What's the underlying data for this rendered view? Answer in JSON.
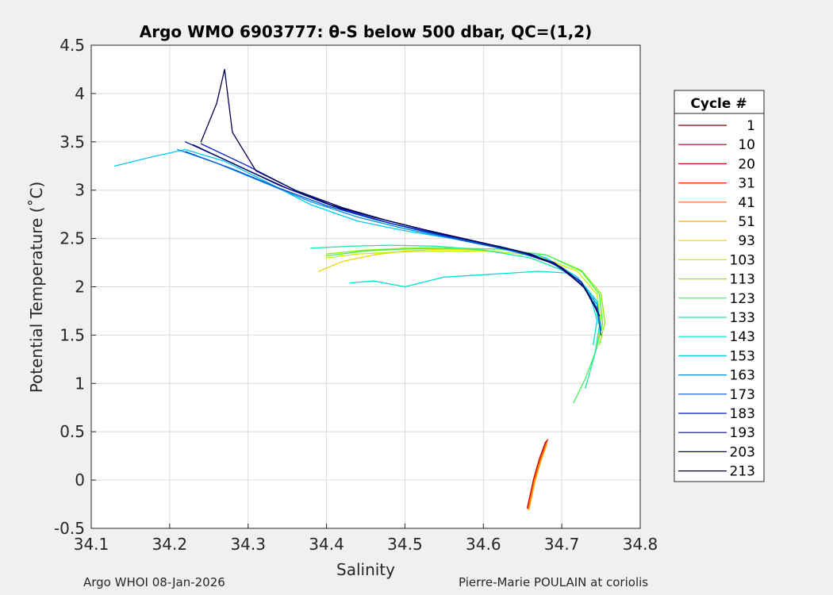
{
  "chart_data": {
    "type": "line",
    "title": "Argo WMO 6903777: θ-S below 500 dbar,  QC=(1,2)",
    "xlabel": "Salinity",
    "ylabel": "Potential Temperature (˚C)",
    "xlim": [
      34.1,
      34.8
    ],
    "ylim": [
      -0.5,
      4.5
    ],
    "xticks": [
      "34.1",
      "34.2",
      "34.3",
      "34.4",
      "34.5",
      "34.6",
      "34.7",
      "34.8"
    ],
    "yticks": [
      "-0.5",
      "0",
      "0.5",
      "1",
      "1.5",
      "2",
      "2.5",
      "3",
      "3.5",
      "4",
      "4.5"
    ],
    "grid": true,
    "legend_title": "Cycle #",
    "legend_position": "right-outside",
    "series": [
      {
        "name": "1",
        "color": "#800000",
        "x": [
          34.657,
          34.665,
          34.672,
          34.68
        ],
        "y": [
          -0.28,
          0.02,
          0.22,
          0.4
        ]
      },
      {
        "name": "10",
        "color": "#a80000",
        "x": [
          34.658,
          34.666,
          34.673,
          34.681
        ],
        "y": [
          -0.27,
          0.03,
          0.23,
          0.41
        ]
      },
      {
        "name": "20",
        "color": "#d40000",
        "x": [
          34.656,
          34.664,
          34.671,
          34.679
        ],
        "y": [
          -0.29,
          0.01,
          0.21,
          0.39
        ]
      },
      {
        "name": "31",
        "color": "#ff2000",
        "x": [
          34.659,
          34.667,
          34.674,
          34.682
        ],
        "y": [
          -0.26,
          0.04,
          0.24,
          0.42
        ]
      },
      {
        "name": "41",
        "color": "#ff6a00",
        "x": [
          34.657,
          34.665,
          34.672,
          34.68
        ],
        "y": [
          -0.3,
          0.0,
          0.2,
          0.38
        ]
      },
      {
        "name": "51",
        "color": "#ffaa00",
        "x": [
          34.658,
          34.666,
          34.673,
          34.681
        ],
        "y": [
          -0.31,
          -0.01,
          0.19,
          0.37
        ]
      },
      {
        "name": "93",
        "color": "#e8d800",
        "x": [
          34.39,
          34.42,
          34.46,
          34.5,
          34.55,
          34.6
        ],
        "y": [
          2.16,
          2.26,
          2.33,
          2.37,
          2.39,
          2.38
        ]
      },
      {
        "name": "103",
        "color": "#c8f000",
        "x": [
          34.4,
          34.44,
          34.49,
          34.55,
          34.61,
          34.67,
          34.72,
          34.745,
          34.75,
          34.745
        ],
        "y": [
          2.3,
          2.34,
          2.36,
          2.37,
          2.37,
          2.32,
          2.16,
          1.92,
          1.62,
          1.42
        ]
      },
      {
        "name": "113",
        "color": "#8cf000",
        "x": [
          34.4,
          34.45,
          34.5,
          34.56,
          34.62,
          34.68,
          34.725,
          34.75,
          34.755,
          34.748
        ],
        "y": [
          2.34,
          2.38,
          2.4,
          2.4,
          2.39,
          2.33,
          2.17,
          1.93,
          1.63,
          1.4
        ]
      },
      {
        "name": "123",
        "color": "#40f060",
        "x": [
          34.4,
          34.45,
          34.5,
          34.56,
          34.62,
          34.68,
          34.725,
          34.748,
          34.752,
          34.744,
          34.73,
          34.715
        ],
        "y": [
          2.32,
          2.37,
          2.39,
          2.4,
          2.39,
          2.33,
          2.16,
          1.92,
          1.62,
          1.35,
          1.05,
          0.8
        ]
      },
      {
        "name": "133",
        "color": "#20e8a0",
        "x": [
          34.38,
          34.43,
          34.48,
          34.54,
          34.6,
          34.66,
          34.71,
          34.74,
          34.748,
          34.742,
          34.73
        ],
        "y": [
          2.4,
          2.42,
          2.43,
          2.42,
          2.38,
          2.3,
          2.14,
          1.9,
          1.6,
          1.3,
          0.95
        ]
      },
      {
        "name": "143",
        "color": "#00e0d0",
        "x": [
          34.43,
          34.46,
          34.5,
          34.55,
          34.61,
          34.67,
          34.71,
          34.735,
          34.745,
          34.74
        ],
        "y": [
          2.04,
          2.06,
          2.0,
          2.1,
          2.13,
          2.16,
          2.14,
          1.95,
          1.65,
          1.4
        ]
      },
      {
        "name": "153",
        "color": "#00c8f0",
        "x": [
          34.13,
          34.18,
          34.22,
          34.27,
          34.32,
          34.38,
          34.44,
          34.5,
          34.56,
          34.62,
          34.68,
          34.72,
          34.745,
          34.75
        ],
        "y": [
          3.25,
          3.35,
          3.42,
          3.3,
          3.1,
          2.85,
          2.68,
          2.58,
          2.5,
          2.42,
          2.3,
          2.1,
          1.85,
          1.55
        ]
      },
      {
        "name": "163",
        "color": "#0090e8",
        "x": [
          34.21,
          34.26,
          34.32,
          34.38,
          34.44,
          34.5,
          34.56,
          34.62,
          34.68,
          34.72,
          34.745,
          34.75
        ],
        "y": [
          3.42,
          3.28,
          3.08,
          2.88,
          2.72,
          2.6,
          2.5,
          2.4,
          2.28,
          2.08,
          1.82,
          1.55
        ]
      },
      {
        "name": "173",
        "color": "#0050d8",
        "x": [
          34.22,
          34.28,
          34.34,
          34.4,
          34.46,
          34.52,
          34.58,
          34.64,
          34.69,
          34.725,
          34.745,
          34.75
        ],
        "y": [
          3.4,
          3.22,
          3.02,
          2.84,
          2.7,
          2.58,
          2.47,
          2.37,
          2.24,
          2.03,
          1.78,
          1.5
        ]
      },
      {
        "name": "183",
        "color": "#0020c0",
        "x": [
          34.24,
          34.3,
          34.36,
          34.42,
          34.48,
          34.54,
          34.6,
          34.66,
          34.7,
          34.73,
          34.748
        ],
        "y": [
          3.48,
          3.25,
          3.0,
          2.8,
          2.66,
          2.55,
          2.45,
          2.34,
          2.2,
          1.98,
          1.7
        ]
      },
      {
        "name": "193",
        "color": "#000c90",
        "x": [
          34.22,
          34.28,
          34.34,
          34.4,
          34.46,
          34.52,
          34.58,
          34.64,
          34.69,
          34.725,
          34.745
        ],
        "y": [
          3.5,
          3.28,
          3.05,
          2.86,
          2.72,
          2.6,
          2.49,
          2.38,
          2.25,
          2.05,
          1.76
        ]
      },
      {
        "name": "203",
        "color": "#000870",
        "x": [
          34.23,
          34.29,
          34.35,
          34.41,
          34.47,
          34.53,
          34.59,
          34.65,
          34.695,
          34.728,
          34.747
        ],
        "y": [
          3.47,
          3.24,
          3.02,
          2.83,
          2.7,
          2.58,
          2.47,
          2.36,
          2.22,
          2.0,
          1.72
        ]
      },
      {
        "name": "213",
        "color": "#000050",
        "x": [
          34.24,
          34.26,
          34.27,
          34.28,
          34.31,
          34.36,
          34.42,
          34.48,
          34.54,
          34.6,
          34.66,
          34.7,
          34.73,
          34.748
        ],
        "y": [
          3.5,
          3.9,
          4.25,
          3.6,
          3.2,
          3.0,
          2.82,
          2.68,
          2.56,
          2.45,
          2.34,
          2.2,
          1.98,
          1.7
        ]
      }
    ]
  },
  "footer": {
    "left": "Argo WHOI 08-Jan-2026",
    "right": "Pierre-Marie POULAIN at coriolis"
  }
}
